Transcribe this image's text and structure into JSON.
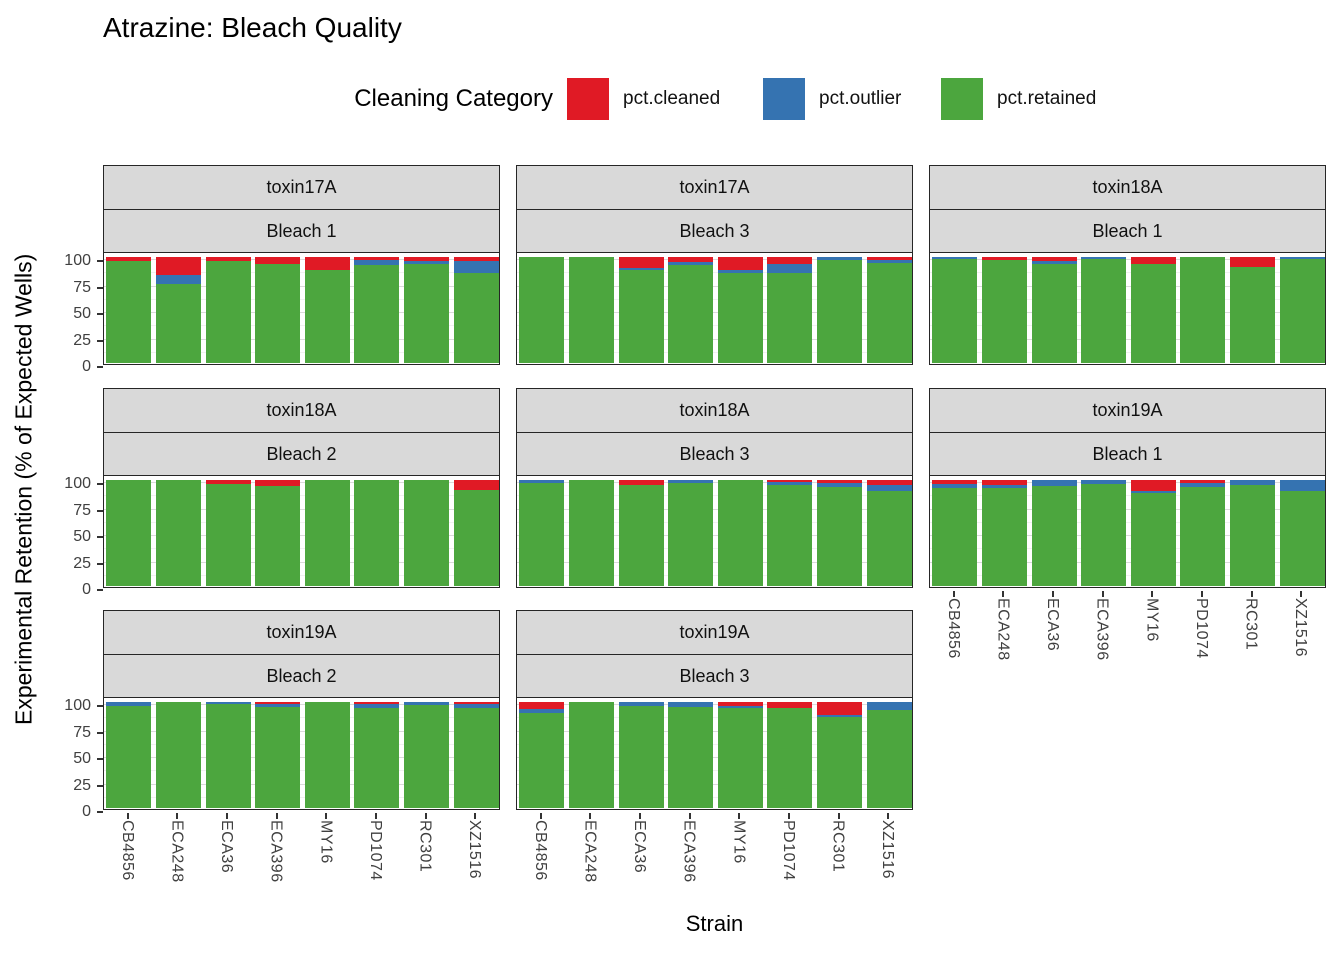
{
  "title": "Atrazine: Bleach Quality",
  "legend": {
    "title": "Cleaning Category",
    "items": [
      {
        "key": "pct.cleaned",
        "label": "pct.cleaned",
        "color": "#E01A25"
      },
      {
        "key": "pct.outlier",
        "label": "pct.outlier",
        "color": "#3573B1"
      },
      {
        "key": "pct.retained",
        "label": "pct.retained",
        "color": "#4CA63E"
      }
    ]
  },
  "axes": {
    "x_title": "Strain",
    "y_title": "Experimental Retention (% of Expected Wells)",
    "y_ticks": [
      0,
      25,
      50,
      75,
      100
    ],
    "ylim": [
      0,
      100
    ]
  },
  "chart_data": {
    "type": "bar",
    "stacked": true,
    "title": "Atrazine: Bleach Quality",
    "xlabel": "Strain",
    "ylabel": "Experimental Retention (% of Expected Wells)",
    "ylim": [
      0,
      100
    ],
    "grid": true,
    "legend_position": "top",
    "units": "percent",
    "categories": [
      "CB4856",
      "ECA248",
      "ECA36",
      "ECA396",
      "MY16",
      "PD1074",
      "RC301",
      "XZ1516"
    ],
    "series_order": [
      "pct.cleaned",
      "pct.outlier",
      "pct.retained"
    ],
    "panels": [
      {
        "facet_row": "toxin17A",
        "facet_col": "Bleach 1",
        "grid": {
          "row": 0,
          "col": 0
        },
        "values": {
          "pct.cleaned": [
            4,
            17,
            4,
            7,
            12,
            3,
            4,
            4
          ],
          "pct.outlier": [
            0,
            8,
            0,
            0,
            0,
            5,
            3,
            11
          ],
          "pct.retained": [
            96,
            75,
            96,
            93,
            88,
            92,
            93,
            85
          ]
        }
      },
      {
        "facet_row": "toxin17A",
        "facet_col": "Bleach 3",
        "grid": {
          "row": 0,
          "col": 1
        },
        "values": {
          "pct.cleaned": [
            0,
            0,
            10,
            5,
            12,
            7,
            0,
            3
          ],
          "pct.outlier": [
            0,
            0,
            2,
            3,
            3,
            8,
            3,
            3
          ],
          "pct.retained": [
            100,
            100,
            88,
            92,
            85,
            85,
            97,
            94
          ]
        }
      },
      {
        "facet_row": "toxin18A",
        "facet_col": "Bleach 1",
        "grid": {
          "row": 0,
          "col": 2
        },
        "values": {
          "pct.cleaned": [
            0,
            3,
            4,
            0,
            7,
            0,
            9,
            0
          ],
          "pct.outlier": [
            2,
            0,
            3,
            2,
            0,
            0,
            0,
            2
          ],
          "pct.retained": [
            98,
            97,
            93,
            98,
            93,
            100,
            91,
            98
          ]
        }
      },
      {
        "facet_row": "toxin18A",
        "facet_col": "Bleach 2",
        "grid": {
          "row": 1,
          "col": 0
        },
        "values": {
          "pct.cleaned": [
            0,
            0,
            4,
            6,
            0,
            0,
            0,
            9
          ],
          "pct.outlier": [
            0,
            0,
            0,
            0,
            0,
            0,
            0,
            0
          ],
          "pct.retained": [
            100,
            100,
            96,
            94,
            100,
            100,
            100,
            91
          ]
        }
      },
      {
        "facet_row": "toxin18A",
        "facet_col": "Bleach 3",
        "grid": {
          "row": 1,
          "col": 1
        },
        "values": {
          "pct.cleaned": [
            0,
            0,
            5,
            0,
            0,
            2,
            3,
            5
          ],
          "pct.outlier": [
            3,
            0,
            0,
            3,
            0,
            3,
            4,
            5
          ],
          "pct.retained": [
            97,
            100,
            95,
            97,
            100,
            95,
            93,
            90
          ]
        }
      },
      {
        "facet_row": "toxin19A",
        "facet_col": "Bleach 1",
        "grid": {
          "row": 1,
          "col": 2
        },
        "values": {
          "pct.cleaned": [
            4,
            5,
            0,
            0,
            10,
            3,
            0,
            0
          ],
          "pct.outlier": [
            4,
            3,
            6,
            4,
            2,
            4,
            5,
            10
          ],
          "pct.retained": [
            92,
            92,
            94,
            96,
            88,
            93,
            95,
            90
          ]
        }
      },
      {
        "facet_row": "toxin19A",
        "facet_col": "Bleach 2",
        "grid": {
          "row": 2,
          "col": 0
        },
        "values": {
          "pct.cleaned": [
            0,
            0,
            0,
            2,
            0,
            2,
            0,
            2
          ],
          "pct.outlier": [
            4,
            0,
            2,
            3,
            0,
            4,
            3,
            4
          ],
          "pct.retained": [
            96,
            100,
            98,
            95,
            100,
            94,
            97,
            94
          ]
        }
      },
      {
        "facet_row": "toxin19A",
        "facet_col": "Bleach 3",
        "grid": {
          "row": 2,
          "col": 1
        },
        "values": {
          "pct.cleaned": [
            7,
            0,
            0,
            0,
            4,
            6,
            12,
            0
          ],
          "pct.outlier": [
            3,
            0,
            4,
            5,
            2,
            0,
            2,
            8
          ],
          "pct.retained": [
            90,
            100,
            96,
            95,
            94,
            94,
            86,
            92
          ]
        }
      }
    ]
  }
}
